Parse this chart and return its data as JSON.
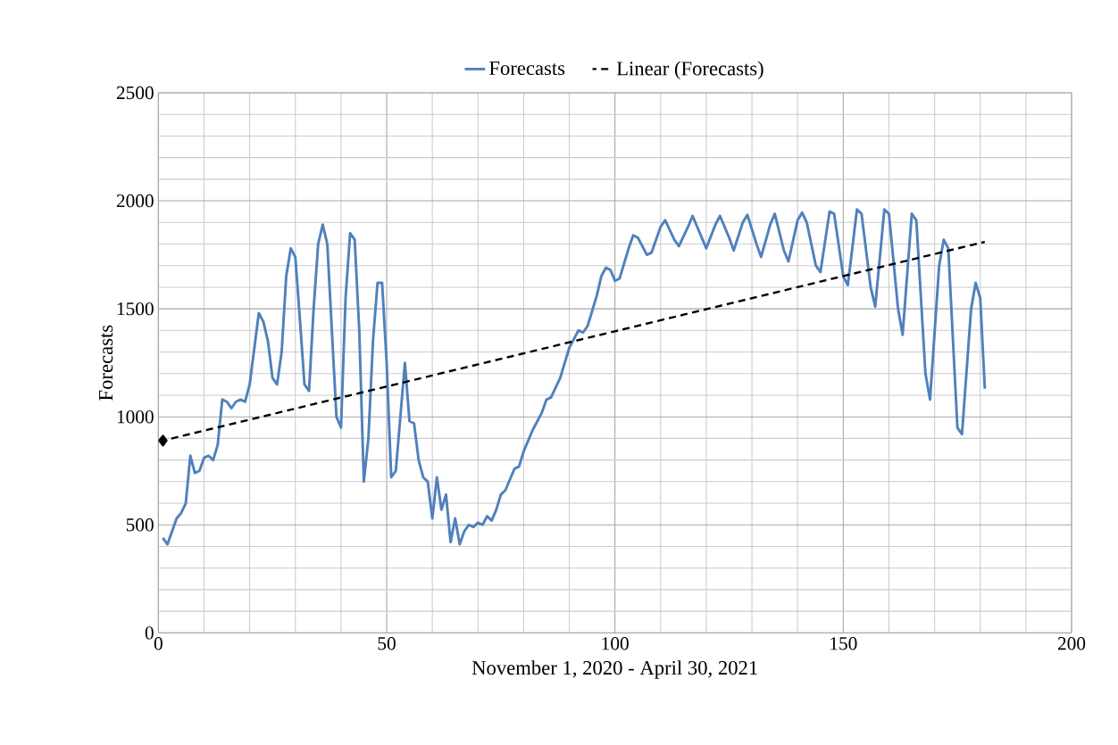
{
  "chart_data": {
    "type": "line",
    "xlabel": "November 1, 2020 - April 30, 2021",
    "ylabel": "Forecasts",
    "xlim": [
      0,
      200
    ],
    "xticks": [
      0,
      50,
      100,
      150,
      200
    ],
    "ylim": [
      0,
      2500
    ],
    "yticks": [
      0,
      500,
      1000,
      1500,
      2000,
      2500
    ],
    "grid": true,
    "legend": "top",
    "series": [
      {
        "name": "Forecasts",
        "color": "#4f81bd",
        "line_style": "solid",
        "marker": "none",
        "x": [
          1,
          2,
          4,
          5,
          6,
          7,
          8,
          9,
          10,
          11,
          12,
          13,
          14,
          15,
          16,
          17,
          18,
          19,
          20,
          22,
          23,
          24,
          25,
          26,
          27,
          28,
          29,
          30,
          31,
          32,
          33,
          34,
          35,
          36,
          37,
          38,
          39,
          40,
          41,
          42,
          43,
          44,
          45,
          46,
          47,
          48,
          49,
          50,
          51,
          52,
          53,
          54,
          55,
          56,
          57,
          58,
          59,
          60,
          61,
          62,
          63,
          64,
          65,
          66,
          67,
          68,
          69,
          70,
          71,
          72,
          73,
          74,
          75,
          76,
          77,
          78,
          79,
          80,
          82,
          84,
          85,
          86,
          88,
          90,
          92,
          93,
          94,
          96,
          97,
          98,
          99,
          100,
          101,
          103,
          104,
          105,
          107,
          108,
          110,
          111,
          113,
          114,
          116,
          117,
          119,
          120,
          122,
          123,
          125,
          126,
          128,
          129,
          131,
          132,
          134,
          135,
          137,
          138,
          140,
          141,
          142,
          144,
          145,
          147,
          148,
          150,
          151,
          153,
          154,
          156,
          157,
          159,
          160,
          162,
          163,
          165,
          166,
          168,
          169,
          171,
          172,
          173,
          175,
          176,
          178,
          179,
          180,
          181
        ],
        "values": [
          440,
          410,
          530,
          555,
          600,
          820,
          740,
          750,
          810,
          820,
          800,
          870,
          1080,
          1070,
          1040,
          1070,
          1080,
          1070,
          1150,
          1480,
          1440,
          1350,
          1180,
          1150,
          1300,
          1650,
          1780,
          1740,
          1450,
          1150,
          1120,
          1500,
          1800,
          1890,
          1800,
          1400,
          1000,
          950,
          1550,
          1850,
          1820,
          1400,
          700,
          900,
          1350,
          1620,
          1620,
          1250,
          720,
          750,
          1000,
          1250,
          980,
          970,
          800,
          720,
          700,
          530,
          720,
          570,
          640,
          420,
          530,
          410,
          470,
          500,
          490,
          510,
          500,
          540,
          520,
          570,
          640,
          660,
          710,
          760,
          770,
          840,
          940,
          1020,
          1080,
          1090,
          1180,
          1320,
          1400,
          1390,
          1420,
          1560,
          1650,
          1690,
          1680,
          1630,
          1640,
          1780,
          1840,
          1830,
          1750,
          1760,
          1880,
          1910,
          1820,
          1790,
          1880,
          1930,
          1830,
          1780,
          1890,
          1930,
          1830,
          1770,
          1900,
          1935,
          1800,
          1740,
          1890,
          1940,
          1770,
          1720,
          1910,
          1945,
          1900,
          1700,
          1670,
          1950,
          1940,
          1650,
          1610,
          1960,
          1940,
          1600,
          1510,
          1960,
          1940,
          1500,
          1380,
          1940,
          1910,
          1200,
          1080,
          1700,
          1820,
          1780,
          950,
          920,
          1500,
          1620,
          1550,
          1130
        ]
      },
      {
        "name": "Linear (Forecasts)",
        "color": "#000000",
        "line_style": "dashed",
        "marker": "diamond",
        "x": [
          1,
          181
        ],
        "values": [
          890,
          1810
        ]
      }
    ]
  }
}
